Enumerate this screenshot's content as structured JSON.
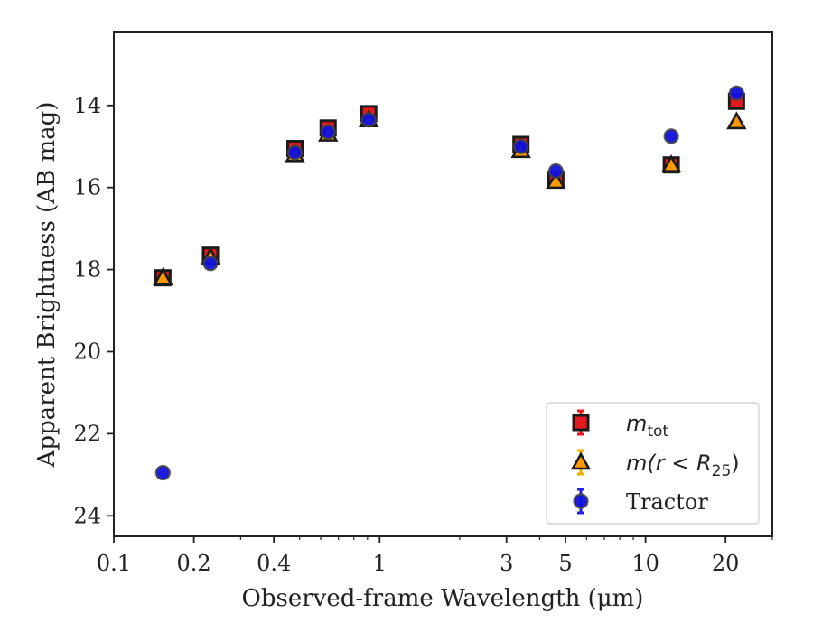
{
  "chart_data": {
    "type": "scatter",
    "title": "",
    "xlabel": "Observed-frame Wavelength (μm)",
    "ylabel": "Apparent Brightness (AB mag)",
    "xscale": "log",
    "xlim": [
      0.1,
      30
    ],
    "ylim": [
      24.5,
      12.2
    ],
    "y_inverted": true,
    "x_ticks": [
      {
        "value": 0.1,
        "label": "0.1"
      },
      {
        "value": 0.2,
        "label": "0.2"
      },
      {
        "value": 0.4,
        "label": "0.4"
      },
      {
        "value": 1,
        "label": "1"
      },
      {
        "value": 3,
        "label": "3"
      },
      {
        "value": 5,
        "label": "5"
      },
      {
        "value": 10,
        "label": "10"
      },
      {
        "value": 20,
        "label": "20"
      }
    ],
    "y_ticks": [
      {
        "value": 14,
        "label": "14"
      },
      {
        "value": 16,
        "label": "16"
      },
      {
        "value": 18,
        "label": "18"
      },
      {
        "value": 20,
        "label": "20"
      },
      {
        "value": 22,
        "label": "22"
      },
      {
        "value": 24,
        "label": "24"
      }
    ],
    "grid": false,
    "legend_position": "lower-right",
    "series": [
      {
        "name": "m_tot",
        "legend_label": "m",
        "legend_sub": "tot",
        "marker": "square",
        "color": "#e31a1c",
        "errcolor": "#e31a1c",
        "points": [
          {
            "x": 0.153,
            "y": 18.2
          },
          {
            "x": 0.231,
            "y": 17.65
          },
          {
            "x": 0.48,
            "y": 15.05
          },
          {
            "x": 0.64,
            "y": 14.55
          },
          {
            "x": 0.91,
            "y": 14.2
          },
          {
            "x": 3.4,
            "y": 14.95
          },
          {
            "x": 4.6,
            "y": 15.8
          },
          {
            "x": 12.5,
            "y": 15.45
          },
          {
            "x": 22.0,
            "y": 13.9
          }
        ]
      },
      {
        "name": "m(r<R_25)",
        "legend_label": "m(r < R",
        "legend_sub": "25",
        "legend_suffix": ")",
        "marker": "triangle",
        "color": "#ff9900",
        "errcolor": "#f0b000",
        "points": [
          {
            "x": 0.153,
            "y": 18.2
          },
          {
            "x": 0.231,
            "y": 17.7
          },
          {
            "x": 0.48,
            "y": 15.2
          },
          {
            "x": 0.64,
            "y": 14.7
          },
          {
            "x": 0.91,
            "y": 14.35
          },
          {
            "x": 3.4,
            "y": 15.1
          },
          {
            "x": 4.6,
            "y": 15.85
          },
          {
            "x": 12.5,
            "y": 15.45
          },
          {
            "x": 22.0,
            "y": 14.4
          }
        ]
      },
      {
        "name": "Tractor",
        "legend_label": "Tractor",
        "marker": "circle",
        "color": "#1010dd",
        "errcolor": "#2222dd",
        "points": [
          {
            "x": 0.153,
            "y": 22.95
          },
          {
            "x": 0.231,
            "y": 17.85
          },
          {
            "x": 0.48,
            "y": 15.15
          },
          {
            "x": 0.64,
            "y": 14.65
          },
          {
            "x": 0.91,
            "y": 14.35
          },
          {
            "x": 3.4,
            "y": 15.0
          },
          {
            "x": 4.6,
            "y": 15.6
          },
          {
            "x": 12.5,
            "y": 14.75
          },
          {
            "x": 22.0,
            "y": 13.7
          }
        ]
      }
    ]
  }
}
